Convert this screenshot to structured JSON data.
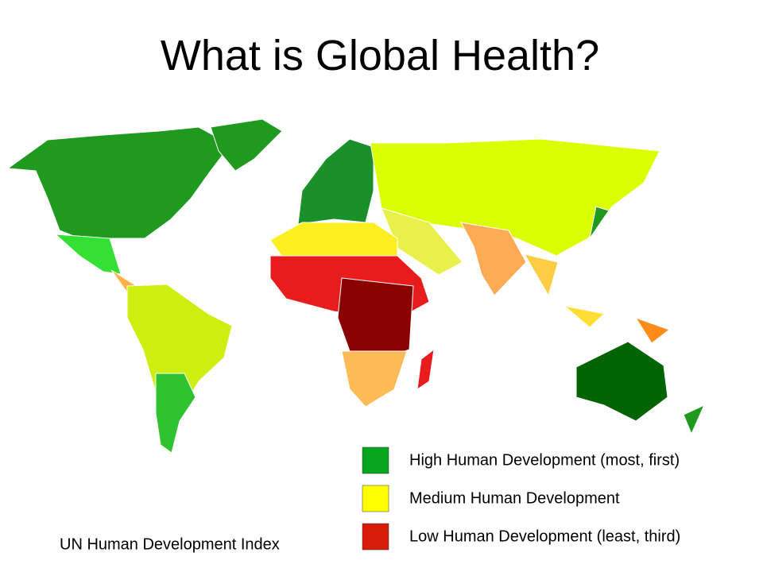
{
  "title": "What is Global Health?",
  "map": {
    "caption": "UN Human Development Index"
  },
  "legend": {
    "items": [
      {
        "label": "High Human Development (most, first)",
        "color": "#05a61e"
      },
      {
        "label": "Medium Human Development",
        "color": "#ffff00"
      },
      {
        "label": "Low Human Development (least, third)",
        "color": "#d71c0c"
      }
    ]
  }
}
